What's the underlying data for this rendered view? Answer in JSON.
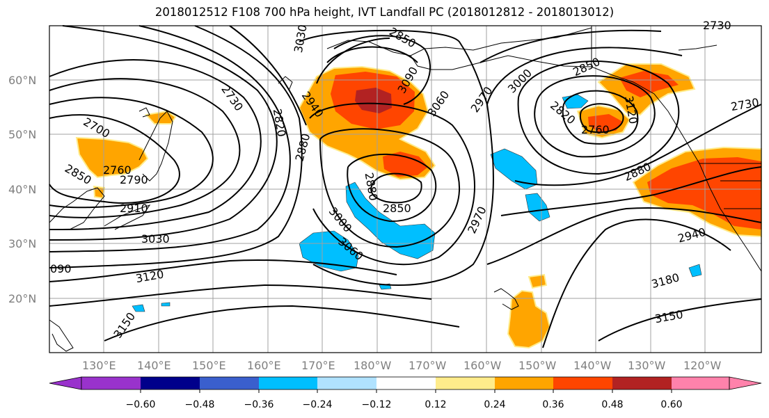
{
  "title": "2018012512 F108 700 hPa height, IVT Landfall PC (2018012812 - 2018013012)",
  "map": {
    "lat_labels": [
      "60°N",
      "50°N",
      "40°N",
      "30°N",
      "20°N"
    ],
    "lon_labels": [
      "130°E",
      "140°E",
      "150°E",
      "160°E",
      "170°E",
      "180°W",
      "170°W",
      "160°W",
      "150°W",
      "140°W",
      "130°W",
      "120°W"
    ],
    "contour_labels": [
      "2700",
      "2730",
      "2760",
      "2790",
      "2820",
      "2850",
      "2880",
      "2910",
      "2940",
      "2970",
      "3000",
      "3030",
      "3060",
      "3090",
      "3120",
      "3150",
      "3180"
    ],
    "contour_label_instances": [
      "2700",
      "2850",
      "2760",
      "2790",
      "2910",
      "3030",
      "3120",
      "3150",
      "090",
      "2730",
      "2820",
      "2880",
      "3030",
      "2940",
      "2850",
      "3000",
      "3060",
      "2880",
      "2850",
      "3090",
      "3060",
      "2970",
      "2970",
      "3000",
      "2850",
      "2820",
      "2760",
      "2730",
      "2880",
      "2940",
      "3180",
      "3150",
      "3120",
      "2730"
    ]
  },
  "colorbar": {
    "tick_labels": [
      "−0.60",
      "−0.48",
      "−0.36",
      "−0.24",
      "−0.12",
      "0.12",
      "0.24",
      "0.36",
      "0.48",
      "0.60"
    ],
    "colors": [
      "#9932cc",
      "#00008b",
      "#3a5fcd",
      "#00bfff",
      "#b0e2ff",
      "#ffffff",
      "#ffec8b",
      "#ffa500",
      "#ff4500",
      "#b22222",
      "#ff82ab"
    ]
  },
  "shading_colors": {
    "neg_light": "#00bfff",
    "pos_yellow": "#ffec8b",
    "pos_orange": "#ffa500",
    "pos_red": "#ff4500",
    "pos_dark": "#b22222"
  }
}
